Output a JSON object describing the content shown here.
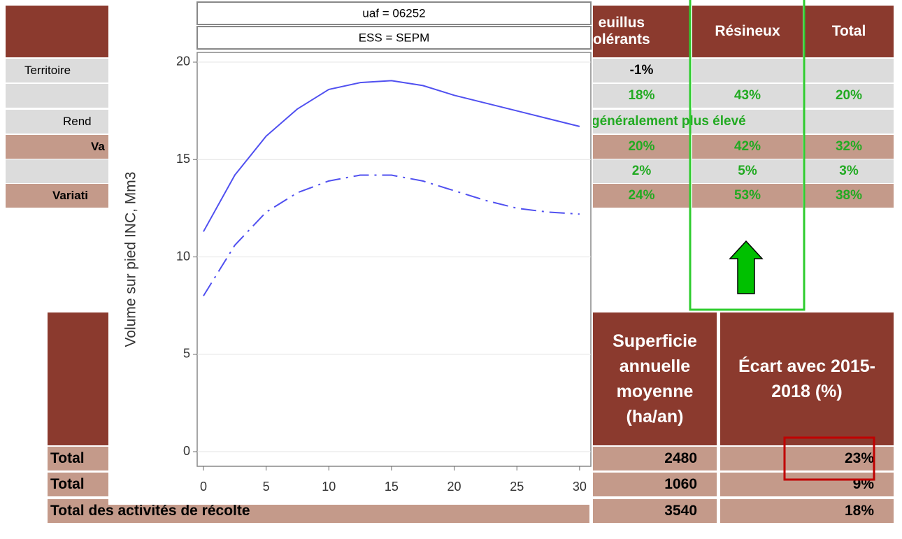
{
  "chart_data": {
    "type": "line",
    "panel_labels": [
      "uaf = 06252",
      "ESS = SEPM"
    ],
    "y_label": "Volume sur pied INC, Mm3",
    "x": [
      0,
      2.5,
      5,
      7.5,
      10,
      12.5,
      15,
      17.5,
      20,
      22.5,
      25,
      27.5,
      30
    ],
    "series": [
      {
        "color": "#5050f0",
        "style": "solid",
        "values": [
          11.3,
          14.2,
          16.2,
          17.6,
          18.6,
          18.95,
          19.05,
          18.8,
          18.3,
          17.9,
          17.5,
          17.1,
          16.7
        ]
      },
      {
        "color": "#5050f0",
        "style": "dashdot",
        "values": [
          8.0,
          10.6,
          12.3,
          13.3,
          13.9,
          14.2,
          14.2,
          13.9,
          13.4,
          12.9,
          12.5,
          12.3,
          12.2
        ]
      }
    ],
    "xlim": [
      -0.5,
      30.9
    ],
    "ylim": [
      -0.75,
      20.5
    ],
    "xticks": [
      0,
      5,
      10,
      15,
      20,
      25,
      30
    ],
    "yticks": [
      0,
      5,
      10,
      15,
      20
    ],
    "grid": true
  },
  "tables": {
    "top": {
      "header": [
        "euillus\nolérants",
        "Résineux",
        "Total"
      ],
      "rows": [
        {
          "label": "Territoire",
          "values": [
            "-1%"
          ]
        },
        {
          "values": [
            "18%",
            "43%",
            "20%"
          ]
        },
        {
          "label": "Rend",
          "note": "généralement plus élevé"
        },
        {
          "label": "Va",
          "values": [
            "20%",
            "42%",
            "32%"
          ]
        },
        {
          "values": [
            "2%",
            "5%",
            "3%"
          ]
        },
        {
          "label": "Variati",
          "values": [
            "24%",
            "53%",
            "38%"
          ]
        }
      ]
    },
    "bottom": {
      "header": [
        "Superficie annuelle moyenne (ha/an)",
        "Écart avec 2015-2018 (%)"
      ],
      "rows": [
        {
          "label": "Total",
          "values": [
            "2480",
            "23%"
          ]
        },
        {
          "label": "Total",
          "values": [
            "1060",
            "9%"
          ]
        },
        {
          "label": "Total des activités de récolte",
          "values": [
            "3540",
            "18%"
          ]
        }
      ]
    }
  }
}
